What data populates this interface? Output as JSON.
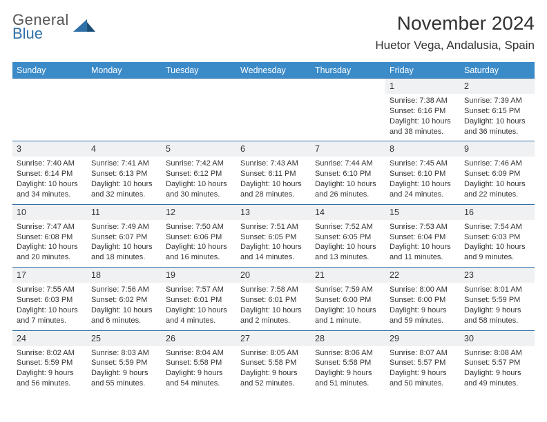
{
  "brand": {
    "general": "General",
    "blue": "Blue"
  },
  "title": "November 2024",
  "location": "Huetor Vega, Andalusia, Spain",
  "colors": {
    "header_bg": "#3b8bc9",
    "week_border": "#2f6fa7",
    "daynum_bg": "#eff1f2",
    "text": "#333333",
    "logo_blue": "#2f6fa7"
  },
  "weekdays": [
    "Sunday",
    "Monday",
    "Tuesday",
    "Wednesday",
    "Thursday",
    "Friday",
    "Saturday"
  ],
  "weeks": [
    [
      {
        "n": "",
        "empty": true
      },
      {
        "n": "",
        "empty": true
      },
      {
        "n": "",
        "empty": true
      },
      {
        "n": "",
        "empty": true
      },
      {
        "n": "",
        "empty": true
      },
      {
        "n": "1",
        "sunrise": "7:38 AM",
        "sunset": "6:16 PM",
        "daylight": "10 hours and 38 minutes."
      },
      {
        "n": "2",
        "sunrise": "7:39 AM",
        "sunset": "6:15 PM",
        "daylight": "10 hours and 36 minutes."
      }
    ],
    [
      {
        "n": "3",
        "sunrise": "7:40 AM",
        "sunset": "6:14 PM",
        "daylight": "10 hours and 34 minutes."
      },
      {
        "n": "4",
        "sunrise": "7:41 AM",
        "sunset": "6:13 PM",
        "daylight": "10 hours and 32 minutes."
      },
      {
        "n": "5",
        "sunrise": "7:42 AM",
        "sunset": "6:12 PM",
        "daylight": "10 hours and 30 minutes."
      },
      {
        "n": "6",
        "sunrise": "7:43 AM",
        "sunset": "6:11 PM",
        "daylight": "10 hours and 28 minutes."
      },
      {
        "n": "7",
        "sunrise": "7:44 AM",
        "sunset": "6:10 PM",
        "daylight": "10 hours and 26 minutes."
      },
      {
        "n": "8",
        "sunrise": "7:45 AM",
        "sunset": "6:10 PM",
        "daylight": "10 hours and 24 minutes."
      },
      {
        "n": "9",
        "sunrise": "7:46 AM",
        "sunset": "6:09 PM",
        "daylight": "10 hours and 22 minutes."
      }
    ],
    [
      {
        "n": "10",
        "sunrise": "7:47 AM",
        "sunset": "6:08 PM",
        "daylight": "10 hours and 20 minutes."
      },
      {
        "n": "11",
        "sunrise": "7:49 AM",
        "sunset": "6:07 PM",
        "daylight": "10 hours and 18 minutes."
      },
      {
        "n": "12",
        "sunrise": "7:50 AM",
        "sunset": "6:06 PM",
        "daylight": "10 hours and 16 minutes."
      },
      {
        "n": "13",
        "sunrise": "7:51 AM",
        "sunset": "6:05 PM",
        "daylight": "10 hours and 14 minutes."
      },
      {
        "n": "14",
        "sunrise": "7:52 AM",
        "sunset": "6:05 PM",
        "daylight": "10 hours and 13 minutes."
      },
      {
        "n": "15",
        "sunrise": "7:53 AM",
        "sunset": "6:04 PM",
        "daylight": "10 hours and 11 minutes."
      },
      {
        "n": "16",
        "sunrise": "7:54 AM",
        "sunset": "6:03 PM",
        "daylight": "10 hours and 9 minutes."
      }
    ],
    [
      {
        "n": "17",
        "sunrise": "7:55 AM",
        "sunset": "6:03 PM",
        "daylight": "10 hours and 7 minutes."
      },
      {
        "n": "18",
        "sunrise": "7:56 AM",
        "sunset": "6:02 PM",
        "daylight": "10 hours and 6 minutes."
      },
      {
        "n": "19",
        "sunrise": "7:57 AM",
        "sunset": "6:01 PM",
        "daylight": "10 hours and 4 minutes."
      },
      {
        "n": "20",
        "sunrise": "7:58 AM",
        "sunset": "6:01 PM",
        "daylight": "10 hours and 2 minutes."
      },
      {
        "n": "21",
        "sunrise": "7:59 AM",
        "sunset": "6:00 PM",
        "daylight": "10 hours and 1 minute."
      },
      {
        "n": "22",
        "sunrise": "8:00 AM",
        "sunset": "6:00 PM",
        "daylight": "9 hours and 59 minutes."
      },
      {
        "n": "23",
        "sunrise": "8:01 AM",
        "sunset": "5:59 PM",
        "daylight": "9 hours and 58 minutes."
      }
    ],
    [
      {
        "n": "24",
        "sunrise": "8:02 AM",
        "sunset": "5:59 PM",
        "daylight": "9 hours and 56 minutes."
      },
      {
        "n": "25",
        "sunrise": "8:03 AM",
        "sunset": "5:59 PM",
        "daylight": "9 hours and 55 minutes."
      },
      {
        "n": "26",
        "sunrise": "8:04 AM",
        "sunset": "5:58 PM",
        "daylight": "9 hours and 54 minutes."
      },
      {
        "n": "27",
        "sunrise": "8:05 AM",
        "sunset": "5:58 PM",
        "daylight": "9 hours and 52 minutes."
      },
      {
        "n": "28",
        "sunrise": "8:06 AM",
        "sunset": "5:58 PM",
        "daylight": "9 hours and 51 minutes."
      },
      {
        "n": "29",
        "sunrise": "8:07 AM",
        "sunset": "5:57 PM",
        "daylight": "9 hours and 50 minutes."
      },
      {
        "n": "30",
        "sunrise": "8:08 AM",
        "sunset": "5:57 PM",
        "daylight": "9 hours and 49 minutes."
      }
    ]
  ],
  "labels": {
    "sunrise": "Sunrise:",
    "sunset": "Sunset:",
    "daylight": "Daylight:"
  }
}
